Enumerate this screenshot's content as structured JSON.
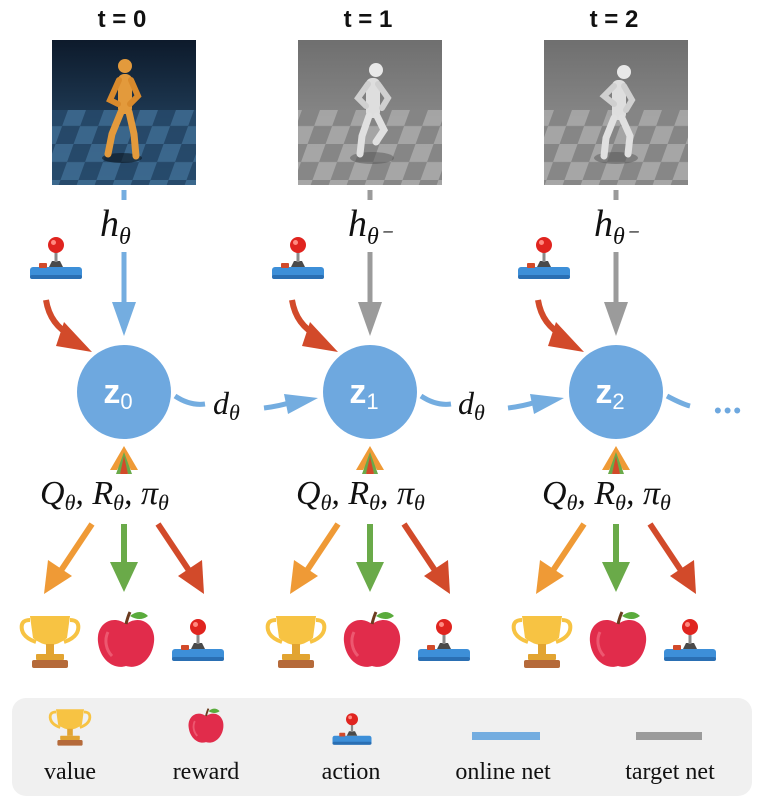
{
  "timesteps": [
    {
      "label": "t = 0",
      "encoder": "h",
      "encoder_sub": "θ",
      "z": "z",
      "z_sub": "0",
      "net": "online"
    },
    {
      "label": "t = 1",
      "encoder": "h",
      "encoder_sub": "θ⁻",
      "z": "z",
      "z_sub": "1",
      "net": "target"
    },
    {
      "label": "t = 2",
      "encoder": "h",
      "encoder_sub": "θ⁻",
      "z": "z",
      "z_sub": "2",
      "net": "target"
    }
  ],
  "dynamics": {
    "symbol": "d",
    "sub": "θ"
  },
  "heads": {
    "q": "Q",
    "r": "R",
    "pi": "π",
    "sub": "θ"
  },
  "ellipsis": "•••",
  "legend": {
    "value": "value",
    "reward": "reward",
    "action": "action",
    "online_net": "online net",
    "target_net": "target net"
  },
  "colors": {
    "online": "#74ade0",
    "target": "#9b9b9b",
    "latent": "#6ea8df",
    "action_arrow": "#d24a2a",
    "value_arrow": "#ef9a36",
    "reward_arrow": "#6aaa49",
    "legend_bg": "#f0f0f0"
  },
  "icons": [
    "humanoid-frame-icon",
    "joystick-icon",
    "trophy-icon",
    "apple-icon"
  ]
}
